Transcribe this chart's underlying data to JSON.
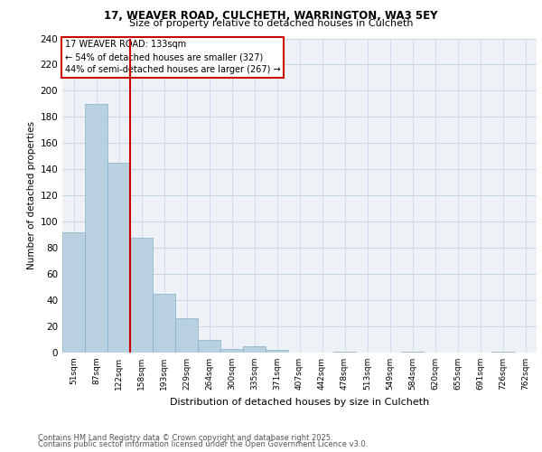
{
  "title1": "17, WEAVER ROAD, CULCHETH, WARRINGTON, WA3 5EY",
  "title2": "Size of property relative to detached houses in Culcheth",
  "xlabel": "Distribution of detached houses by size in Culcheth",
  "ylabel": "Number of detached properties",
  "footer1": "Contains HM Land Registry data © Crown copyright and database right 2025.",
  "footer2": "Contains public sector information licensed under the Open Government Licence v3.0.",
  "annotation_title": "17 WEAVER ROAD: 133sqm",
  "annotation_line1": "← 54% of detached houses are smaller (327)",
  "annotation_line2": "44% of semi-detached houses are larger (267) →",
  "categories": [
    "51sqm",
    "87sqm",
    "122sqm",
    "158sqm",
    "193sqm",
    "229sqm",
    "264sqm",
    "300sqm",
    "335sqm",
    "371sqm",
    "407sqm",
    "442sqm",
    "478sqm",
    "513sqm",
    "549sqm",
    "584sqm",
    "620sqm",
    "655sqm",
    "691sqm",
    "726sqm",
    "762sqm"
  ],
  "values": [
    92,
    190,
    145,
    88,
    45,
    26,
    10,
    3,
    5,
    2,
    0,
    0,
    1,
    0,
    0,
    1,
    0,
    0,
    0,
    1,
    0
  ],
  "bar_color": "#b8d0e0",
  "bar_edge_color": "#8ab0c8",
  "vline_color": "#cc0000",
  "vline_x": 2.5,
  "ylim": [
    0,
    240
  ],
  "yticks": [
    0,
    20,
    40,
    60,
    80,
    100,
    120,
    140,
    160,
    180,
    200,
    220,
    240
  ],
  "bg_color": "#eef2f7",
  "annotation_box_color": "#cc0000",
  "grid_color": "#c8d4e4"
}
